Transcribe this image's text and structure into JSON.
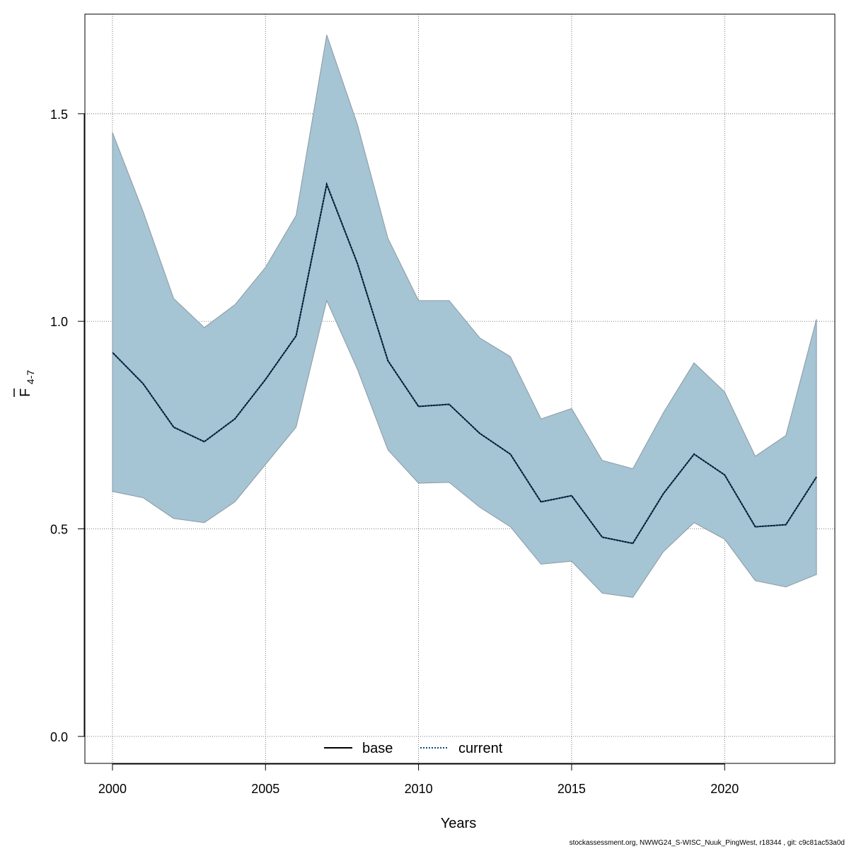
{
  "chart_data": {
    "type": "line",
    "xlabel": "Years",
    "ylabel_main": "F",
    "ylabel_sub": "4-7",
    "xlim": [
      1999.1,
      2023.6
    ],
    "ylim": [
      -0.065,
      1.74
    ],
    "xticks": [
      2000,
      2005,
      2010,
      2015,
      2020
    ],
    "yticks": [
      0.0,
      0.5,
      1.0,
      1.5
    ],
    "ytick_labels": [
      "0.0",
      "0.5",
      "1.0",
      "1.5"
    ],
    "grid": true,
    "legend_position": "bottom",
    "colors": {
      "band": "#a5c4d4",
      "band_edge": "#8a9aa2",
      "current": "#0b4f7a",
      "base": "#000000",
      "grid": "#555555"
    },
    "x": [
      2000,
      2001,
      2002,
      2003,
      2004,
      2005,
      2006,
      2007,
      2008,
      2009,
      2010,
      2011,
      2012,
      2013,
      2014,
      2015,
      2016,
      2017,
      2018,
      2019,
      2020,
      2021,
      2022,
      2023
    ],
    "series": [
      {
        "name": "base",
        "style": "solid",
        "values": [
          0.925,
          0.85,
          0.745,
          0.71,
          0.765,
          0.86,
          0.965,
          1.33,
          1.14,
          0.905,
          0.795,
          0.8,
          0.73,
          0.68,
          0.565,
          0.58,
          0.48,
          0.465,
          0.585,
          0.68,
          0.63,
          0.505,
          0.51,
          0.625
        ]
      },
      {
        "name": "current",
        "style": "dotted",
        "values": [
          0.925,
          0.85,
          0.745,
          0.71,
          0.765,
          0.86,
          0.965,
          1.33,
          1.14,
          0.905,
          0.795,
          0.8,
          0.73,
          0.68,
          0.565,
          0.58,
          0.48,
          0.465,
          0.585,
          0.68,
          0.63,
          0.505,
          0.51,
          0.625
        ]
      }
    ],
    "band": {
      "lower": [
        0.59,
        0.575,
        0.525,
        0.515,
        0.565,
        0.655,
        0.745,
        1.05,
        0.885,
        0.69,
        0.61,
        0.612,
        0.552,
        0.505,
        0.415,
        0.422,
        0.345,
        0.335,
        0.445,
        0.515,
        0.475,
        0.375,
        0.36,
        0.39
      ],
      "upper": [
        1.455,
        1.265,
        1.055,
        0.985,
        1.04,
        1.13,
        1.255,
        1.69,
        1.475,
        1.2,
        1.05,
        1.05,
        0.96,
        0.915,
        0.765,
        0.79,
        0.665,
        0.645,
        0.78,
        0.9,
        0.83,
        0.675,
        0.725,
        1.005
      ]
    }
  },
  "footer": "stockassessment.org, NWWG24_S-WISC_Nuuk_PingWest, r18344 , git: c9c81ac53a0d"
}
